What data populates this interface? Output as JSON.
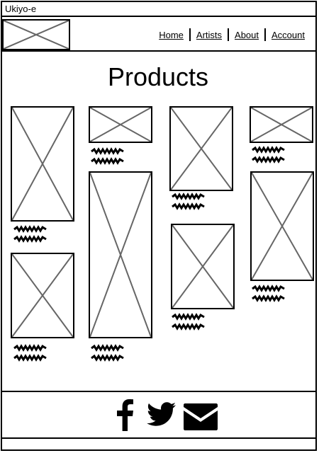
{
  "window": {
    "title": "Ukiyo-e"
  },
  "nav": {
    "items": [
      "Home",
      "Artists",
      "About",
      "Account"
    ]
  },
  "main": {
    "title": "Products"
  },
  "footer": {
    "icons": [
      "facebook-icon",
      "twitter-icon",
      "mail-icon"
    ]
  }
}
